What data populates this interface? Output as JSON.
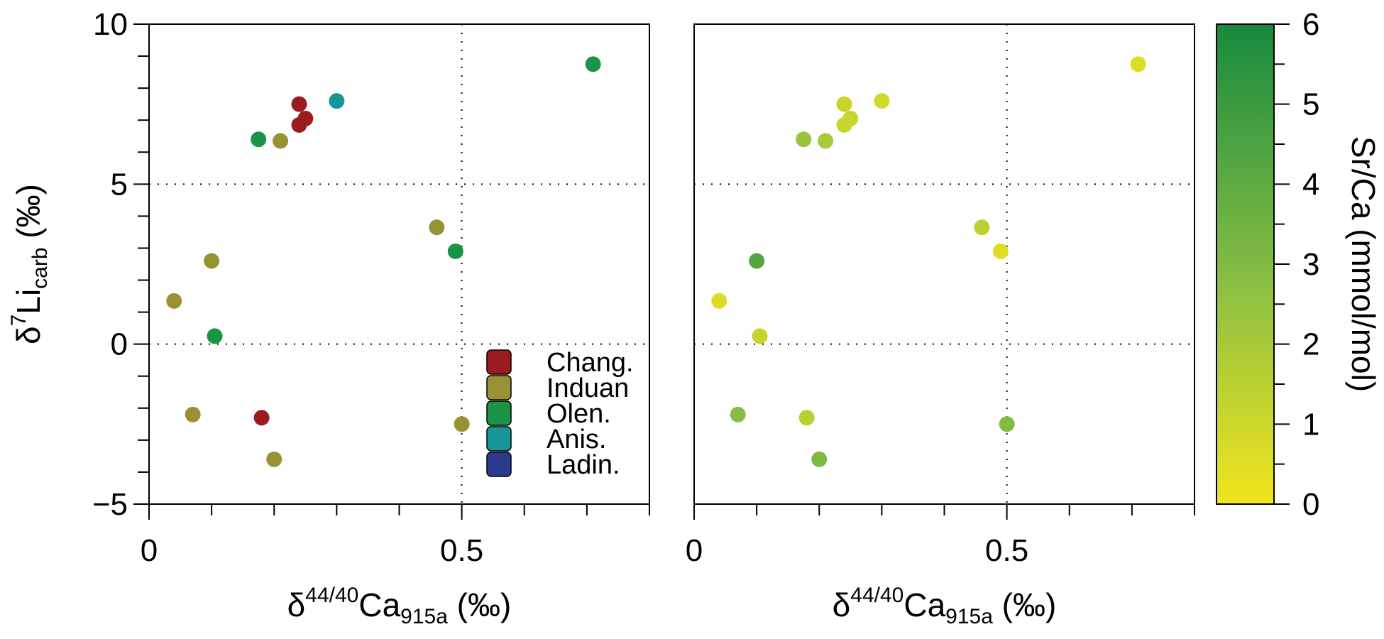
{
  "chart_data": {
    "type": "scatter",
    "panels": [
      {
        "name": "age-panel",
        "color_mode": "stage",
        "xlabel": {
          "base": "δ",
          "sup": "44/40",
          "main": "Ca",
          "sub": "915a",
          "unit": " (‰)"
        },
        "ylabel": {
          "base": "δ",
          "sup": "7",
          "main": "Li",
          "sub": "carb",
          "unit": " (‰)"
        }
      },
      {
        "name": "srca-panel",
        "color_mode": "srca",
        "xlabel": {
          "base": "δ",
          "sup": "44/40",
          "main": "Ca",
          "sub": "915a",
          "unit": " (‰)"
        }
      }
    ],
    "xlim": [
      0,
      0.8
    ],
    "ylim": [
      -5,
      10
    ],
    "x_ticks": [
      0,
      0.5
    ],
    "x_tick_labels": [
      "0",
      "0.5"
    ],
    "y_ticks": [
      -5,
      0,
      5,
      10
    ],
    "y_tick_labels": [
      "−5",
      "0",
      "5",
      "10"
    ],
    "gridlines": {
      "x": [
        0.5
      ],
      "y": [
        0,
        5
      ],
      "style": "dotted"
    },
    "legend": {
      "position": "bottom-right",
      "entries": [
        {
          "label": "Chang.",
          "color": "#9b1b1f"
        },
        {
          "label": "Induan",
          "color": "#999235"
        },
        {
          "label": "Olen.",
          "color": "#1a9447"
        },
        {
          "label": "Anis.",
          "color": "#17969a"
        },
        {
          "label": "Ladin.",
          "color": "#2b3990"
        }
      ]
    },
    "colorbar": {
      "label": "Sr/Ca (mmol/mol)",
      "range": [
        0,
        6
      ],
      "ticks": [
        0,
        1,
        2,
        3,
        4,
        5,
        6
      ],
      "tick_labels": [
        "0",
        "1",
        "2",
        "3",
        "4",
        "5",
        "6"
      ],
      "color_low": "#f2e51c",
      "color_mid": "#8cc043",
      "color_high": "#178a3e"
    },
    "points": [
      {
        "x": 0.71,
        "y": 8.75,
        "stage": "Olen.",
        "srca": 0.55
      },
      {
        "x": 0.3,
        "y": 7.6,
        "stage": "Anis.",
        "srca": 0.85
      },
      {
        "x": 0.24,
        "y": 7.5,
        "stage": "Chang.",
        "srca": 1.1
      },
      {
        "x": 0.25,
        "y": 7.05,
        "stage": "Chang.",
        "srca": 1.15
      },
      {
        "x": 0.24,
        "y": 6.85,
        "stage": "Chang.",
        "srca": 1.15
      },
      {
        "x": 0.175,
        "y": 6.4,
        "stage": "Olen.",
        "srca": 2.4
      },
      {
        "x": 0.21,
        "y": 6.35,
        "stage": "Induan",
        "srca": 2.0
      },
      {
        "x": 0.46,
        "y": 3.65,
        "stage": "Induan",
        "srca": 1.4
      },
      {
        "x": 0.49,
        "y": 2.9,
        "stage": "Olen.",
        "srca": 0.5
      },
      {
        "x": 0.1,
        "y": 2.6,
        "stage": "Induan",
        "srca": 4.3
      },
      {
        "x": 0.04,
        "y": 1.35,
        "stage": "Induan",
        "srca": 0.6
      },
      {
        "x": 0.105,
        "y": 0.25,
        "stage": "Olen.",
        "srca": 1.2
      },
      {
        "x": 0.07,
        "y": -2.2,
        "stage": "Induan",
        "srca": 2.8
      },
      {
        "x": 0.18,
        "y": -2.3,
        "stage": "Chang.",
        "srca": 1.5
      },
      {
        "x": 0.5,
        "y": -2.5,
        "stage": "Induan",
        "srca": 3.0
      },
      {
        "x": 0.2,
        "y": -3.6,
        "stage": "Induan",
        "srca": 3.1
      }
    ]
  }
}
